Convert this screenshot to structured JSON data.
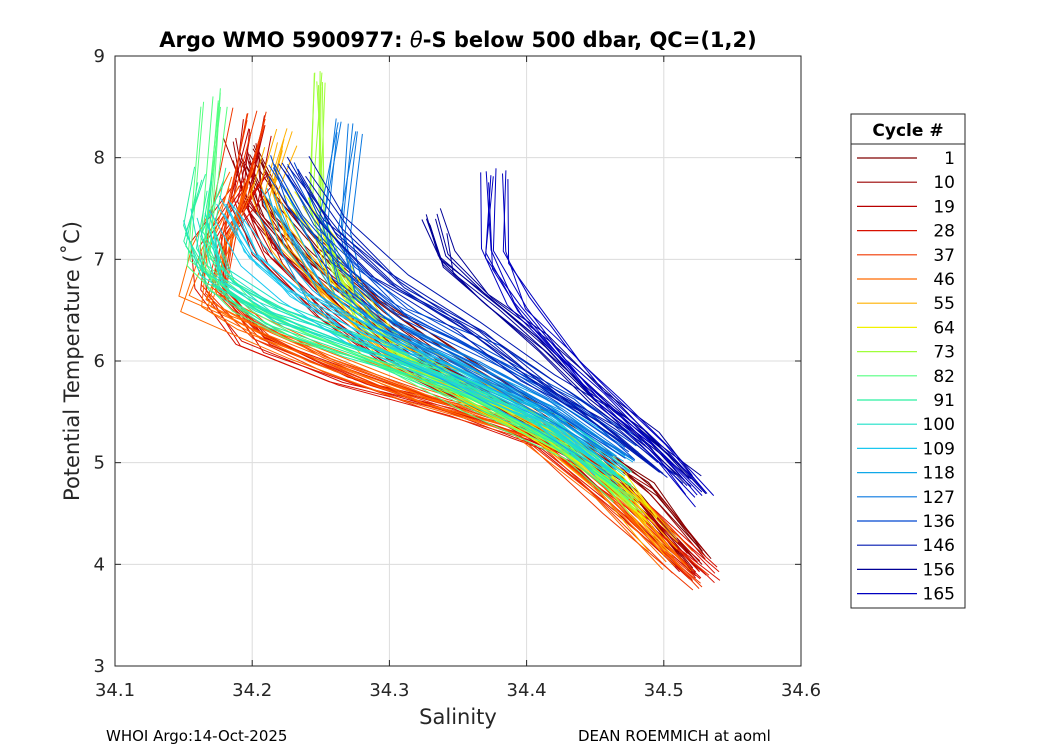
{
  "chart_data": {
    "type": "line",
    "title_prefix": "Argo WMO 5900977: ",
    "title_theta": "θ",
    "title_suffix": "-S below 500 dbar,  QC=(1,2)",
    "xlabel": "Salinity",
    "ylabel": "Potential Temperature (˚C)",
    "xlim": [
      34.1,
      34.6
    ],
    "ylim": [
      3,
      9
    ],
    "xticks": [
      "34.1",
      "34.2",
      "34.3",
      "34.4",
      "34.5",
      "34.6"
    ],
    "yticks": [
      "3",
      "4",
      "5",
      "6",
      "7",
      "8",
      "9"
    ],
    "grid": true,
    "legend": {
      "title": "Cycle #",
      "position": "outside-right",
      "entries": [
        {
          "label": "1",
          "color": "#800000"
        },
        {
          "label": "10",
          "color": "#9a0000"
        },
        {
          "label": "19",
          "color": "#b80000"
        },
        {
          "label": "28",
          "color": "#d81000"
        },
        {
          "label": "37",
          "color": "#f03800"
        },
        {
          "label": "46",
          "color": "#ff6a00"
        },
        {
          "label": "55",
          "color": "#ffb000"
        },
        {
          "label": "64",
          "color": "#f2f200"
        },
        {
          "label": "73",
          "color": "#9fff3a"
        },
        {
          "label": "82",
          "color": "#55ff80"
        },
        {
          "label": "91",
          "color": "#2af0a0"
        },
        {
          "label": "100",
          "color": "#1ee0c8"
        },
        {
          "label": "109",
          "color": "#1ac8f0"
        },
        {
          "label": "118",
          "color": "#10a8e8"
        },
        {
          "label": "127",
          "color": "#0a78e0"
        },
        {
          "label": "136",
          "color": "#0048d0"
        },
        {
          "label": "146",
          "color": "#0018b0"
        },
        {
          "label": "156",
          "color": "#000096"
        },
        {
          "label": "165",
          "color": "#0000c0"
        }
      ]
    },
    "profile_families": [
      {
        "color_index": 0,
        "points": [
          [
            34.53,
            4.05
          ],
          [
            34.49,
            4.7
          ],
          [
            34.45,
            5.1
          ],
          [
            34.4,
            5.55
          ],
          [
            34.34,
            6.05
          ],
          [
            34.29,
            6.55
          ],
          [
            34.25,
            7.05
          ],
          [
            34.22,
            7.5
          ],
          [
            34.2,
            8.0
          ]
        ]
      },
      {
        "color_index": 1,
        "points": [
          [
            34.52,
            4.0
          ],
          [
            34.48,
            4.65
          ],
          [
            34.44,
            5.05
          ],
          [
            34.38,
            5.55
          ],
          [
            34.32,
            6.05
          ],
          [
            34.27,
            6.5
          ],
          [
            34.23,
            7.0
          ],
          [
            34.2,
            7.5
          ],
          [
            34.19,
            8.1
          ]
        ]
      },
      {
        "color_index": 2,
        "points": [
          [
            34.52,
            3.95
          ],
          [
            34.47,
            4.6
          ],
          [
            34.43,
            5.1
          ],
          [
            34.36,
            5.6
          ],
          [
            34.3,
            6.0
          ],
          [
            34.25,
            6.5
          ],
          [
            34.21,
            7.05
          ],
          [
            34.19,
            7.6
          ],
          [
            34.2,
            8.3
          ]
        ]
      },
      {
        "color_index": 3,
        "points": [
          [
            34.53,
            3.9
          ],
          [
            34.48,
            4.5
          ],
          [
            34.42,
            5.15
          ],
          [
            34.35,
            5.5
          ],
          [
            34.27,
            5.8
          ],
          [
            34.2,
            6.2
          ],
          [
            34.17,
            6.7
          ],
          [
            34.17,
            7.2
          ],
          [
            34.2,
            7.8
          ]
        ]
      },
      {
        "color_index": 4,
        "points": [
          [
            34.52,
            3.85
          ],
          [
            34.46,
            4.6
          ],
          [
            34.4,
            5.3
          ],
          [
            34.33,
            5.55
          ],
          [
            34.25,
            5.95
          ],
          [
            34.2,
            6.3
          ],
          [
            34.17,
            6.7
          ],
          [
            34.18,
            7.3
          ],
          [
            34.2,
            8.4
          ]
        ]
      },
      {
        "color_index": 5,
        "points": [
          [
            34.51,
            4.0
          ],
          [
            34.46,
            4.7
          ],
          [
            34.4,
            5.35
          ],
          [
            34.32,
            5.7
          ],
          [
            34.24,
            6.1
          ],
          [
            34.19,
            6.4
          ],
          [
            34.16,
            6.6
          ],
          [
            34.17,
            7.1
          ],
          [
            34.19,
            7.8
          ]
        ]
      },
      {
        "color_index": 6,
        "points": [
          [
            34.5,
            4.2
          ],
          [
            34.46,
            4.8
          ],
          [
            34.41,
            5.3
          ],
          [
            34.35,
            5.8
          ],
          [
            34.29,
            6.2
          ],
          [
            34.25,
            6.7
          ],
          [
            34.22,
            7.2
          ],
          [
            34.21,
            7.7
          ],
          [
            34.22,
            8.2
          ]
        ]
      },
      {
        "color_index": 7,
        "points": [
          [
            34.49,
            4.5
          ],
          [
            34.46,
            4.9
          ],
          [
            34.41,
            5.35
          ],
          [
            34.35,
            5.75
          ],
          [
            34.3,
            6.2
          ],
          [
            34.27,
            6.7
          ],
          [
            34.25,
            7.2
          ],
          [
            34.23,
            7.6
          ]
        ]
      },
      {
        "color_index": 8,
        "points": [
          [
            34.48,
            4.6
          ],
          [
            34.44,
            5.1
          ],
          [
            34.38,
            5.55
          ],
          [
            34.32,
            6.0
          ],
          [
            34.28,
            6.5
          ],
          [
            34.26,
            7.0
          ],
          [
            34.25,
            7.5
          ],
          [
            34.25,
            8.8
          ]
        ]
      },
      {
        "color_index": 9,
        "points": [
          [
            34.47,
            4.7
          ],
          [
            34.43,
            5.15
          ],
          [
            34.36,
            5.65
          ],
          [
            34.29,
            6.05
          ],
          [
            34.23,
            6.35
          ],
          [
            34.19,
            6.6
          ],
          [
            34.16,
            7.0
          ],
          [
            34.17,
            8.6
          ]
        ]
      },
      {
        "color_index": 10,
        "points": [
          [
            34.47,
            4.8
          ],
          [
            34.42,
            5.3
          ],
          [
            34.35,
            5.75
          ],
          [
            34.28,
            6.1
          ],
          [
            34.22,
            6.4
          ],
          [
            34.18,
            6.7
          ],
          [
            34.16,
            7.2
          ],
          [
            34.17,
            7.8
          ]
        ]
      },
      {
        "color_index": 11,
        "points": [
          [
            34.46,
            4.9
          ],
          [
            34.41,
            5.4
          ],
          [
            34.34,
            5.85
          ],
          [
            34.27,
            6.2
          ],
          [
            34.21,
            6.5
          ],
          [
            34.17,
            6.85
          ],
          [
            34.16,
            7.4
          ]
        ]
      },
      {
        "color_index": 12,
        "points": [
          [
            34.46,
            4.95
          ],
          [
            34.41,
            5.45
          ],
          [
            34.34,
            5.9
          ],
          [
            34.28,
            6.25
          ],
          [
            34.23,
            6.6
          ],
          [
            34.2,
            7.0
          ],
          [
            34.18,
            7.5
          ]
        ]
      },
      {
        "color_index": 13,
        "points": [
          [
            34.47,
            5.0
          ],
          [
            34.42,
            5.45
          ],
          [
            34.35,
            5.9
          ],
          [
            34.29,
            6.3
          ],
          [
            34.25,
            6.7
          ],
          [
            34.23,
            7.1
          ],
          [
            34.21,
            7.6
          ]
        ]
      },
      {
        "color_index": 14,
        "points": [
          [
            34.47,
            5.05
          ],
          [
            34.42,
            5.5
          ],
          [
            34.36,
            5.95
          ],
          [
            34.3,
            6.35
          ],
          [
            34.27,
            6.75
          ],
          [
            34.26,
            7.3
          ],
          [
            34.27,
            8.3
          ]
        ]
      },
      {
        "color_index": 15,
        "points": [
          [
            34.48,
            5.1
          ],
          [
            34.43,
            5.6
          ],
          [
            34.37,
            6.05
          ],
          [
            34.31,
            6.45
          ],
          [
            34.27,
            6.9
          ],
          [
            34.24,
            7.4
          ],
          [
            34.22,
            7.9
          ]
        ]
      },
      {
        "color_index": 16,
        "points": [
          [
            34.5,
            4.9
          ],
          [
            34.46,
            5.35
          ],
          [
            34.41,
            5.8
          ],
          [
            34.36,
            6.3
          ],
          [
            34.3,
            6.8
          ],
          [
            34.26,
            7.3
          ],
          [
            34.23,
            7.9
          ]
        ]
      },
      {
        "color_index": 17,
        "points": [
          [
            34.52,
            4.8
          ],
          [
            34.49,
            5.2
          ],
          [
            34.45,
            5.65
          ],
          [
            34.41,
            6.15
          ],
          [
            34.37,
            6.6
          ],
          [
            34.34,
            7.0
          ],
          [
            34.33,
            7.4
          ]
        ]
      },
      {
        "color_index": 18,
        "points": [
          [
            34.53,
            4.65
          ],
          [
            34.5,
            5.1
          ],
          [
            34.46,
            5.6
          ],
          [
            34.43,
            6.0
          ],
          [
            34.4,
            6.5
          ],
          [
            34.38,
            7.0
          ],
          [
            34.38,
            7.8
          ]
        ]
      }
    ]
  },
  "footer": {
    "left": "WHOI Argo:14-Oct-2025",
    "right": "DEAN ROEMMICH at aoml"
  }
}
